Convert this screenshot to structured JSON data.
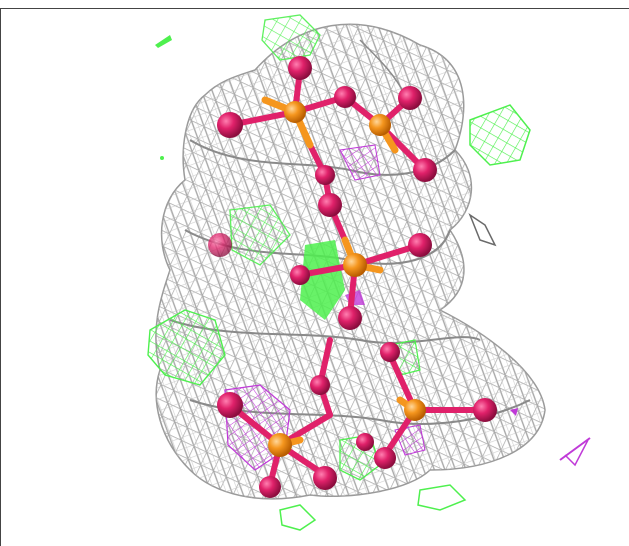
{
  "scene": {
    "kind": "molecular-viewer",
    "background": "#ffffff",
    "colors": {
      "density_mesh": "#b8b8b8",
      "positive_difference": "#4ef04e",
      "negative_difference": "#c03ad8",
      "phosphorus": "#f5961e",
      "oxygen": "#e0216a"
    }
  }
}
